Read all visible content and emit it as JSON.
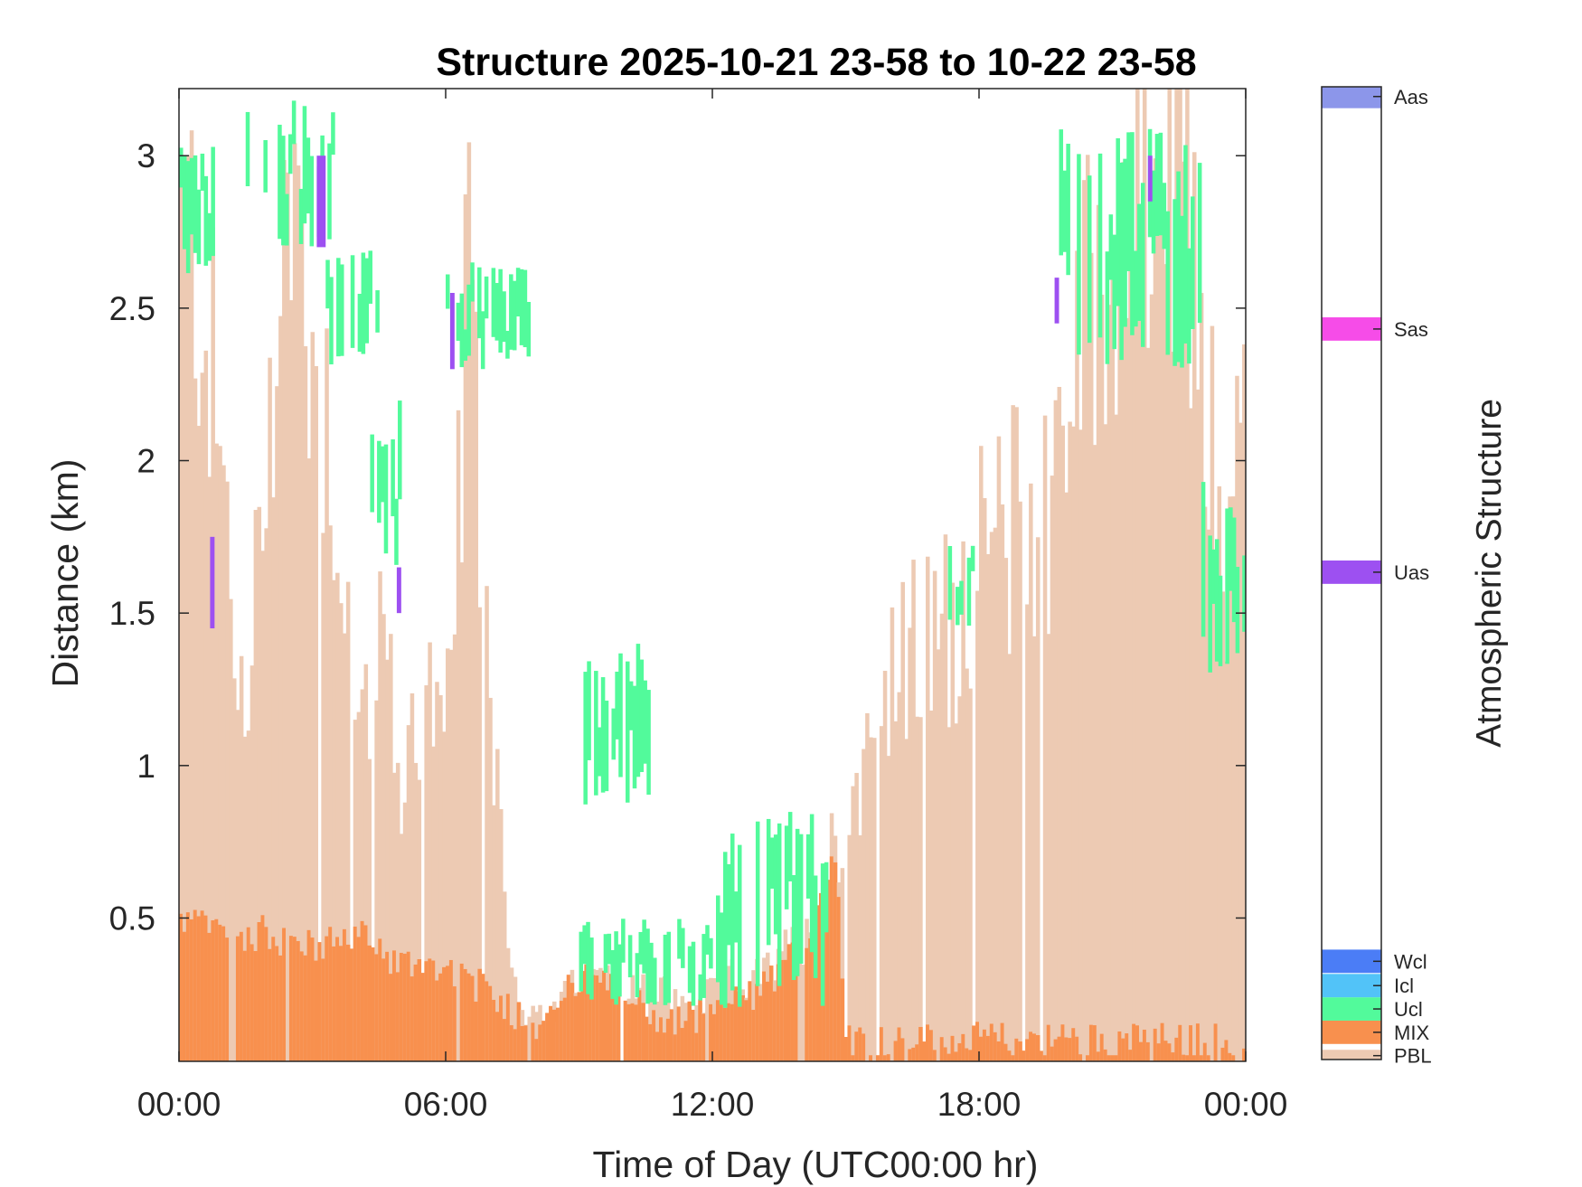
{
  "chart_data": {
    "type": "heatmap",
    "title": "Structure 2025-10-21 23-58 to 10-22 23-58",
    "xlabel": "Time of Day (UTC00:00 hr)",
    "ylabel": "Distance (km)",
    "colorbar_label": "Atmospheric Structure",
    "xlim": [
      0,
      24
    ],
    "ylim": [
      0.03,
      3.22
    ],
    "x_ticks": [
      0,
      6,
      12,
      18,
      24
    ],
    "x_tick_labels": [
      "00:00",
      "06:00",
      "12:00",
      "18:00",
      "00:00"
    ],
    "y_ticks": [
      0.5,
      1,
      1.5,
      2,
      2.5,
      3
    ],
    "y_tick_labels": [
      "0.5",
      "1",
      "1.5",
      "2",
      "2.5",
      "3"
    ],
    "categories": [
      {
        "name": "PBL",
        "color": "#EDCAB3"
      },
      {
        "name": "MIX",
        "color": "#F8904E"
      },
      {
        "name": "Ucl",
        "color": "#52FA9B"
      },
      {
        "name": "Icl",
        "color": "#52C3F8"
      },
      {
        "name": "Wcl",
        "color": "#4B7DF6"
      },
      {
        "name": "Uas",
        "color": "#9D50F1"
      },
      {
        "name": "Sas",
        "color": "#F64CE8"
      },
      {
        "name": "Aas",
        "color": "#8C96EA"
      }
    ],
    "pbl_top_km": [
      [
        0.0,
        2.8
      ],
      [
        0.5,
        2.6
      ],
      [
        1.0,
        1.9
      ],
      [
        1.5,
        1.0
      ],
      [
        2.0,
        2.2
      ],
      [
        2.5,
        2.9
      ],
      [
        3.0,
        2.4
      ],
      [
        3.5,
        2.0
      ],
      [
        4.0,
        1.1
      ],
      [
        4.5,
        1.5
      ],
      [
        5.0,
        0.9
      ],
      [
        5.5,
        1.3
      ],
      [
        6.0,
        1.0
      ],
      [
        6.5,
        2.5
      ],
      [
        7.0,
        1.3
      ],
      [
        7.5,
        0.3
      ],
      [
        8.0,
        0.15
      ],
      [
        8.5,
        0.2
      ],
      [
        9.0,
        0.3
      ],
      [
        9.5,
        0.3
      ],
      [
        10.0,
        0.3
      ],
      [
        10.5,
        0.3
      ],
      [
        11.0,
        0.25
      ],
      [
        11.5,
        0.2
      ],
      [
        12.0,
        0.25
      ],
      [
        12.5,
        0.3
      ],
      [
        13.0,
        0.3
      ],
      [
        13.5,
        0.35
      ],
      [
        14.0,
        0.45
      ],
      [
        14.5,
        0.6
      ],
      [
        15.0,
        0.9
      ],
      [
        15.5,
        1.05
      ],
      [
        16.0,
        1.25
      ],
      [
        16.5,
        1.35
      ],
      [
        17.0,
        1.4
      ],
      [
        17.5,
        1.5
      ],
      [
        18.0,
        1.65
      ],
      [
        18.5,
        1.75
      ],
      [
        19.0,
        1.8
      ],
      [
        19.5,
        1.85
      ],
      [
        20.0,
        2.25
      ],
      [
        20.5,
        2.5
      ],
      [
        21.0,
        2.7
      ],
      [
        21.5,
        2.8
      ],
      [
        22.0,
        2.85
      ],
      [
        22.5,
        2.8
      ],
      [
        23.0,
        2.5
      ],
      [
        23.5,
        1.5
      ],
      [
        24.0,
        2.3
      ]
    ],
    "mix_top_km": [
      [
        0.0,
        0.5
      ],
      [
        1.0,
        0.45
      ],
      [
        2.0,
        0.45
      ],
      [
        3.0,
        0.4
      ],
      [
        4.0,
        0.45
      ],
      [
        5.0,
        0.35
      ],
      [
        6.0,
        0.35
      ],
      [
        7.0,
        0.25
      ],
      [
        8.0,
        0.15
      ],
      [
        9.0,
        0.3
      ],
      [
        10.0,
        0.25
      ],
      [
        11.0,
        0.15
      ],
      [
        12.0,
        0.2
      ],
      [
        13.0,
        0.25
      ],
      [
        14.0,
        0.4
      ],
      [
        14.5,
        0.6
      ],
      [
        14.8,
        0.75
      ],
      [
        15.0,
        0.1
      ],
      [
        24.0,
        0.1
      ]
    ],
    "ucl_layers": [
      {
        "x": [
          0.0,
          0.8
        ],
        "y": [
          2.6,
          3.05
        ]
      },
      {
        "x": [
          1.5,
          3.5
        ],
        "y": [
          2.7,
          3.2
        ]
      },
      {
        "x": [
          3.3,
          4.5
        ],
        "y": [
          2.3,
          2.7
        ]
      },
      {
        "x": [
          4.3,
          5.0
        ],
        "y": [
          1.6,
          2.2
        ]
      },
      {
        "x": [
          6.0,
          7.9
        ],
        "y": [
          2.3,
          2.65
        ]
      },
      {
        "x": [
          9.1,
          10.6
        ],
        "y": [
          0.85,
          1.4
        ]
      },
      {
        "x": [
          9.0,
          12.0
        ],
        "y": [
          0.2,
          0.5
        ]
      },
      {
        "x": [
          12.0,
          14.6
        ],
        "y": [
          0.2,
          0.85
        ]
      },
      {
        "x": [
          17.3,
          17.9
        ],
        "y": [
          1.45,
          1.75
        ]
      },
      {
        "x": [
          19.8,
          23.0
        ],
        "y": [
          2.3,
          3.1
        ]
      },
      {
        "x": [
          23.0,
          24.0
        ],
        "y": [
          1.3,
          1.95
        ]
      }
    ],
    "uas_layers": [
      {
        "x": [
          0.7,
          0.8
        ],
        "y": [
          1.45,
          1.75
        ]
      },
      {
        "x": [
          3.1,
          3.3
        ],
        "y": [
          2.7,
          3.0
        ]
      },
      {
        "x": [
          4.9,
          5.0
        ],
        "y": [
          1.5,
          1.65
        ]
      },
      {
        "x": [
          6.1,
          6.2
        ],
        "y": [
          2.3,
          2.55
        ]
      },
      {
        "x": [
          19.7,
          19.8
        ],
        "y": [
          2.45,
          2.6
        ]
      },
      {
        "x": [
          21.8,
          21.9
        ],
        "y": [
          2.85,
          3.0
        ]
      }
    ]
  }
}
